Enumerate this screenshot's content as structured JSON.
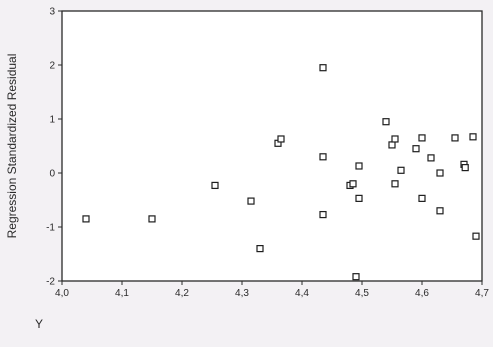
{
  "chart_data": {
    "type": "scatter",
    "xlabel": "Y",
    "ylabel": "Regression Standardized Residual",
    "xlim": [
      4.0,
      4.7
    ],
    "ylim": [
      -2,
      3
    ],
    "x_ticks": [
      "4,0",
      "4,1",
      "4,2",
      "4,3",
      "4,4",
      "4,5",
      "4,6",
      "4,7"
    ],
    "y_ticks": [
      "3",
      "2",
      "1",
      "0",
      "-1",
      "-2"
    ],
    "grid": false,
    "marker": "square",
    "points": [
      {
        "x": 4.04,
        "y": -0.85
      },
      {
        "x": 4.15,
        "y": -0.85
      },
      {
        "x": 4.255,
        "y": -0.23
      },
      {
        "x": 4.315,
        "y": -0.52
      },
      {
        "x": 4.33,
        "y": -1.4
      },
      {
        "x": 4.36,
        "y": 0.55
      },
      {
        "x": 4.365,
        "y": 0.63
      },
      {
        "x": 4.435,
        "y": 1.95
      },
      {
        "x": 4.435,
        "y": 0.3
      },
      {
        "x": 4.435,
        "y": -0.77
      },
      {
        "x": 4.48,
        "y": -0.23
      },
      {
        "x": 4.485,
        "y": -0.2
      },
      {
        "x": 4.49,
        "y": -1.92
      },
      {
        "x": 4.495,
        "y": 0.13
      },
      {
        "x": 4.495,
        "y": -0.47
      },
      {
        "x": 4.54,
        "y": 0.95
      },
      {
        "x": 4.55,
        "y": 0.52
      },
      {
        "x": 4.555,
        "y": 0.63
      },
      {
        "x": 4.555,
        "y": -0.2
      },
      {
        "x": 4.565,
        "y": 0.05
      },
      {
        "x": 4.59,
        "y": 0.45
      },
      {
        "x": 4.6,
        "y": 0.65
      },
      {
        "x": 4.6,
        "y": -0.47
      },
      {
        "x": 4.615,
        "y": 0.28
      },
      {
        "x": 4.63,
        "y": 0.0
      },
      {
        "x": 4.63,
        "y": -0.7
      },
      {
        "x": 4.655,
        "y": 0.65
      },
      {
        "x": 4.67,
        "y": 0.16
      },
      {
        "x": 4.672,
        "y": 0.1
      },
      {
        "x": 4.685,
        "y": 0.67
      },
      {
        "x": 4.69,
        "y": -1.17
      }
    ]
  }
}
